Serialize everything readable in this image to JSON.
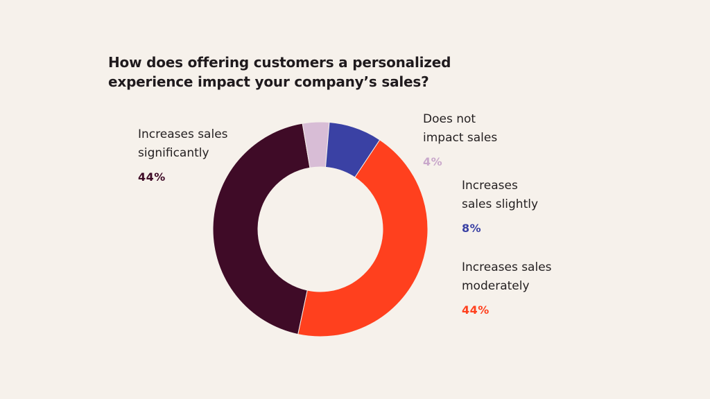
{
  "chart_data": {
    "type": "pie",
    "variant": "donut",
    "title_lines": [
      "How does offering customers a personalized",
      "experience impact your company’s sales?"
    ],
    "start_angle_deg": 12,
    "slices": [
      {
        "label_lines": [
          "Increases sales",
          "significantly"
        ],
        "value": 44,
        "value_label": "44%",
        "color": "#3f0b27",
        "label_color": "#3f0b27"
      },
      {
        "label_lines": [
          "Does not",
          "impact sales"
        ],
        "value": 4,
        "value_label": "4%",
        "color": "#d8bdd6",
        "label_color": "#c9a8cb"
      },
      {
        "label_lines": [
          "Increases",
          "sales slightly"
        ],
        "value": 8,
        "value_label": "8%",
        "color": "#3a41a4",
        "label_color": "#3a41a4"
      },
      {
        "label_lines": [
          "Increases sales",
          "moderately"
        ],
        "value": 44,
        "value_label": "44%",
        "color": "#ff401e",
        "label_color": "#ff401e"
      }
    ]
  }
}
